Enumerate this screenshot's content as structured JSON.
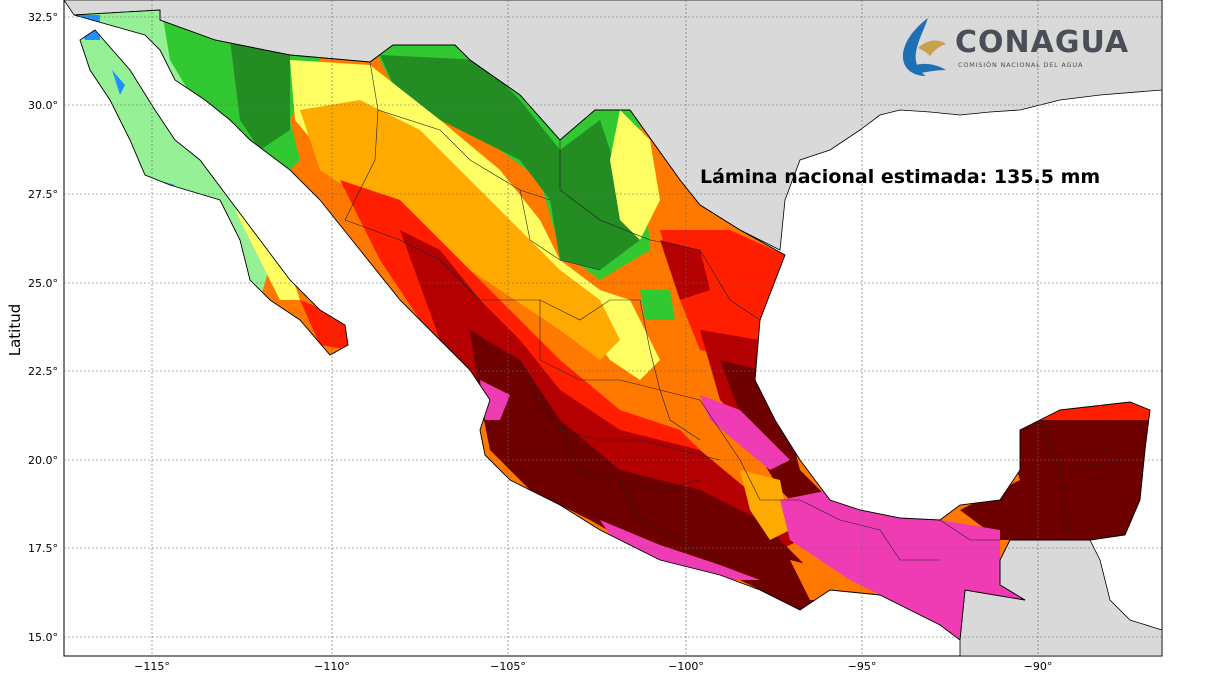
{
  "map": {
    "ylabel": "Latitud",
    "annotation": "Lámina nacional estimada: 135.5 mm",
    "x_ticks": [
      "−115°",
      "−110°",
      "−105°",
      "−100°",
      "−95°",
      "−90°"
    ],
    "y_ticks": [
      "32.5°",
      "30.0°",
      "27.5°",
      "25.0°",
      "22.5°",
      "20.0°",
      "17.5°",
      "15.0°"
    ],
    "extent": {
      "lon": [
        -117.5,
        -86.2
      ],
      "lat": [
        14.6,
        33.0
      ]
    },
    "grid": "dotted",
    "colors": {
      "sea": "#ffffff",
      "foreign_land": "#d9d9d9",
      "wettest": "#f03cb4",
      "very_high": "#6e0000",
      "high": "#b40000",
      "above": "#ff1e00",
      "mid": "#ff7800",
      "mid_low": "#ffaa00",
      "low": "#ffff64",
      "dry_1": "#32c832",
      "dry_2": "#238c23",
      "dry_3": "#96f096",
      "driest": "#1e90ff"
    }
  },
  "logo": {
    "name": "CONAGUA",
    "subtitle": "COMISIÓN NACIONAL DEL AGUA"
  }
}
